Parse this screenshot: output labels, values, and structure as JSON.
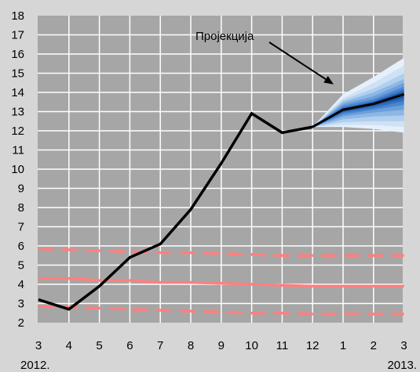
{
  "chart_data": {
    "type": "line",
    "title": "",
    "xlabel": "",
    "ylabel": "",
    "ylim": [
      2,
      18
    ],
    "yticks": [
      2,
      3,
      4,
      5,
      6,
      7,
      8,
      9,
      10,
      11,
      12,
      13,
      14,
      15,
      16,
      17,
      18
    ],
    "x_tick_labels": [
      "3",
      "4",
      "5",
      "6",
      "7",
      "8",
      "9",
      "10",
      "11",
      "12",
      "1",
      "2",
      "3"
    ],
    "year_labels": [
      {
        "text": "2012.",
        "at_index": 0
      },
      {
        "text": "2013.",
        "at_index": 12
      }
    ],
    "annotation": {
      "text": "Пројекција",
      "points_to_index": 10,
      "points_to_value": 14.5
    },
    "grid": true,
    "colors": {
      "background": "#d6d6d6",
      "plot": "#a6a6a6",
      "grid": "#ffffff",
      "actual": "#000000",
      "target": "#ff7f7f",
      "fan": [
        "#e6f0fb",
        "#cfe2f5",
        "#b1cfee",
        "#8db7e4",
        "#6c9fda",
        "#4a86cf",
        "#2f6fbf",
        "#1b59a7"
      ]
    },
    "series": [
      {
        "role": "actual",
        "values": [
          3.2,
          2.7,
          3.9,
          5.4,
          6.1,
          7.9,
          10.3,
          12.9,
          11.9,
          12.2,
          null,
          null,
          null
        ]
      },
      {
        "role": "projection",
        "values": [
          null,
          null,
          null,
          null,
          null,
          null,
          null,
          null,
          null,
          12.2,
          13.1,
          13.4,
          13.9
        ]
      },
      {
        "role": "target-center",
        "values": [
          4.3,
          4.3,
          4.2,
          4.2,
          4.1,
          4.1,
          4.05,
          4.0,
          3.95,
          3.9,
          3.9,
          3.9,
          3.9
        ]
      },
      {
        "role": "target-upper",
        "values": [
          5.85,
          5.8,
          5.75,
          5.7,
          5.65,
          5.65,
          5.6,
          5.55,
          5.5,
          5.5,
          5.5,
          5.5,
          5.5
        ]
      },
      {
        "role": "target-lower",
        "values": [
          2.85,
          2.8,
          2.75,
          2.7,
          2.65,
          2.6,
          2.55,
          2.5,
          2.5,
          2.45,
          2.45,
          2.45,
          2.45
        ]
      }
    ],
    "fan_bands": [
      {
        "lower": [
          12.2,
          12.2,
          12.1,
          11.9
        ],
        "upper": [
          12.2,
          13.9,
          14.8,
          15.8
        ]
      },
      {
        "lower": [
          12.2,
          12.3,
          12.3,
          12.2
        ],
        "upper": [
          12.2,
          13.7,
          14.5,
          15.4
        ]
      },
      {
        "lower": [
          12.2,
          12.45,
          12.5,
          12.5
        ],
        "upper": [
          12.2,
          13.6,
          14.2,
          15.0
        ]
      },
      {
        "lower": [
          12.2,
          12.6,
          12.75,
          12.8
        ],
        "upper": [
          12.2,
          13.5,
          14.0,
          14.7
        ]
      },
      {
        "lower": [
          12.2,
          12.75,
          12.95,
          13.1
        ],
        "upper": [
          12.2,
          13.4,
          13.8,
          14.5
        ]
      },
      {
        "lower": [
          12.2,
          12.85,
          13.1,
          13.35
        ],
        "upper": [
          12.2,
          13.3,
          13.65,
          14.3
        ]
      },
      {
        "lower": [
          12.2,
          12.95,
          13.2,
          13.55
        ],
        "upper": [
          12.2,
          13.2,
          13.55,
          14.15
        ]
      },
      {
        "lower": [
          12.2,
          13.0,
          13.3,
          13.7
        ],
        "upper": [
          12.2,
          13.15,
          13.5,
          14.05
        ]
      }
    ]
  }
}
